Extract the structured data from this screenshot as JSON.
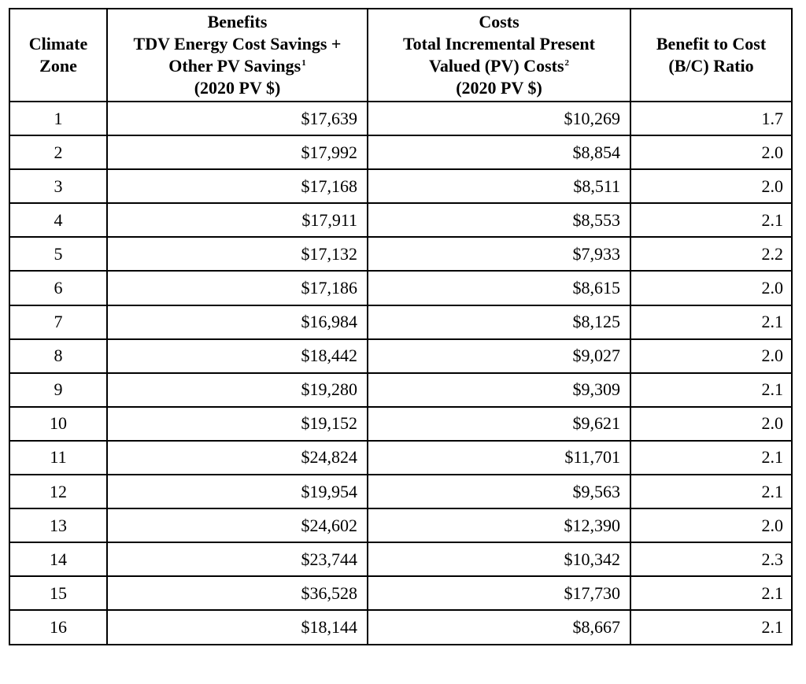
{
  "headers": {
    "zone": [
      "Climate",
      "Zone"
    ],
    "benefits": {
      "line1": "Benefits",
      "line2": "TDV Energy Cost Savings +",
      "line3": "Other PV Savings",
      "line3_sup": "1",
      "line4": "(2020 PV $)"
    },
    "costs": {
      "line1": "Costs",
      "line2": "Total Incremental Present",
      "line3": "Valued (PV) Costs",
      "line3_sup": "2",
      "line4": "(2020 PV $)"
    },
    "ratio": [
      "Benefit to Cost",
      "(B/C) Ratio"
    ]
  },
  "rows": [
    {
      "zone": "1",
      "benefits": "$17,639",
      "costs": "$10,269",
      "ratio": "1.7"
    },
    {
      "zone": "2",
      "benefits": "$17,992",
      "costs": "$8,854",
      "ratio": "2.0"
    },
    {
      "zone": "3",
      "benefits": "$17,168",
      "costs": "$8,511",
      "ratio": "2.0"
    },
    {
      "zone": "4",
      "benefits": "$17,911",
      "costs": "$8,553",
      "ratio": "2.1"
    },
    {
      "zone": "5",
      "benefits": "$17,132",
      "costs": "$7,933",
      "ratio": "2.2"
    },
    {
      "zone": "6",
      "benefits": "$17,186",
      "costs": "$8,615",
      "ratio": "2.0"
    },
    {
      "zone": "7",
      "benefits": "$16,984",
      "costs": "$8,125",
      "ratio": "2.1"
    },
    {
      "zone": "8",
      "benefits": "$18,442",
      "costs": "$9,027",
      "ratio": "2.0"
    },
    {
      "zone": "9",
      "benefits": "$19,280",
      "costs": "$9,309",
      "ratio": "2.1"
    },
    {
      "zone": "10",
      "benefits": "$19,152",
      "costs": "$9,621",
      "ratio": "2.0"
    },
    {
      "zone": "11",
      "benefits": "$24,824",
      "costs": "$11,701",
      "ratio": "2.1"
    },
    {
      "zone": "12",
      "benefits": "$19,954",
      "costs": "$9,563",
      "ratio": "2.1"
    },
    {
      "zone": "13",
      "benefits": "$24,602",
      "costs": "$12,390",
      "ratio": "2.0"
    },
    {
      "zone": "14",
      "benefits": "$23,744",
      "costs": "$10,342",
      "ratio": "2.3"
    },
    {
      "zone": "15",
      "benefits": "$36,528",
      "costs": "$17,730",
      "ratio": "2.1"
    },
    {
      "zone": "16",
      "benefits": "$18,144",
      "costs": "$8,667",
      "ratio": "2.1"
    }
  ]
}
